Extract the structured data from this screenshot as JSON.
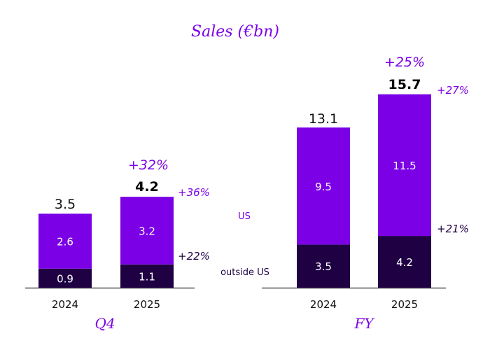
{
  "chart_data": {
    "type": "bar",
    "stacked": true,
    "title": "Sales (€bn)",
    "colors": {
      "US": "#7b00e6",
      "outside US": "#1e0043",
      "axis": "#555555"
    },
    "legend": [
      {
        "name": "US",
        "placement": "between-panels"
      },
      {
        "name": "outside US",
        "placement": "between-panels"
      }
    ],
    "groups": [
      {
        "label": "Q4",
        "categories": [
          "2024",
          "2025"
        ],
        "series": [
          {
            "name": "outside US",
            "values": [
              0.9,
              1.1
            ]
          },
          {
            "name": "US",
            "values": [
              2.6,
              3.2
            ]
          }
        ],
        "totals": [
          "3.5",
          "4.2"
        ],
        "growth_total": "+32%",
        "growth_us": "+36%",
        "growth_outside_us": "+22%",
        "ylim": [
          0,
          4.5
        ]
      },
      {
        "label": "FY",
        "categories": [
          "2024",
          "2025"
        ],
        "series": [
          {
            "name": "outside US",
            "values": [
              3.5,
              4.2
            ]
          },
          {
            "name": "US",
            "values": [
              9.5,
              11.5
            ]
          }
        ],
        "totals": [
          "13.1",
          "15.7"
        ],
        "growth_total": "+25%",
        "growth_us": "+27%",
        "growth_outside_us": "+21%",
        "ylim": [
          0,
          17
        ]
      }
    ],
    "xlabel": "",
    "ylabel": "",
    "grid": false
  }
}
